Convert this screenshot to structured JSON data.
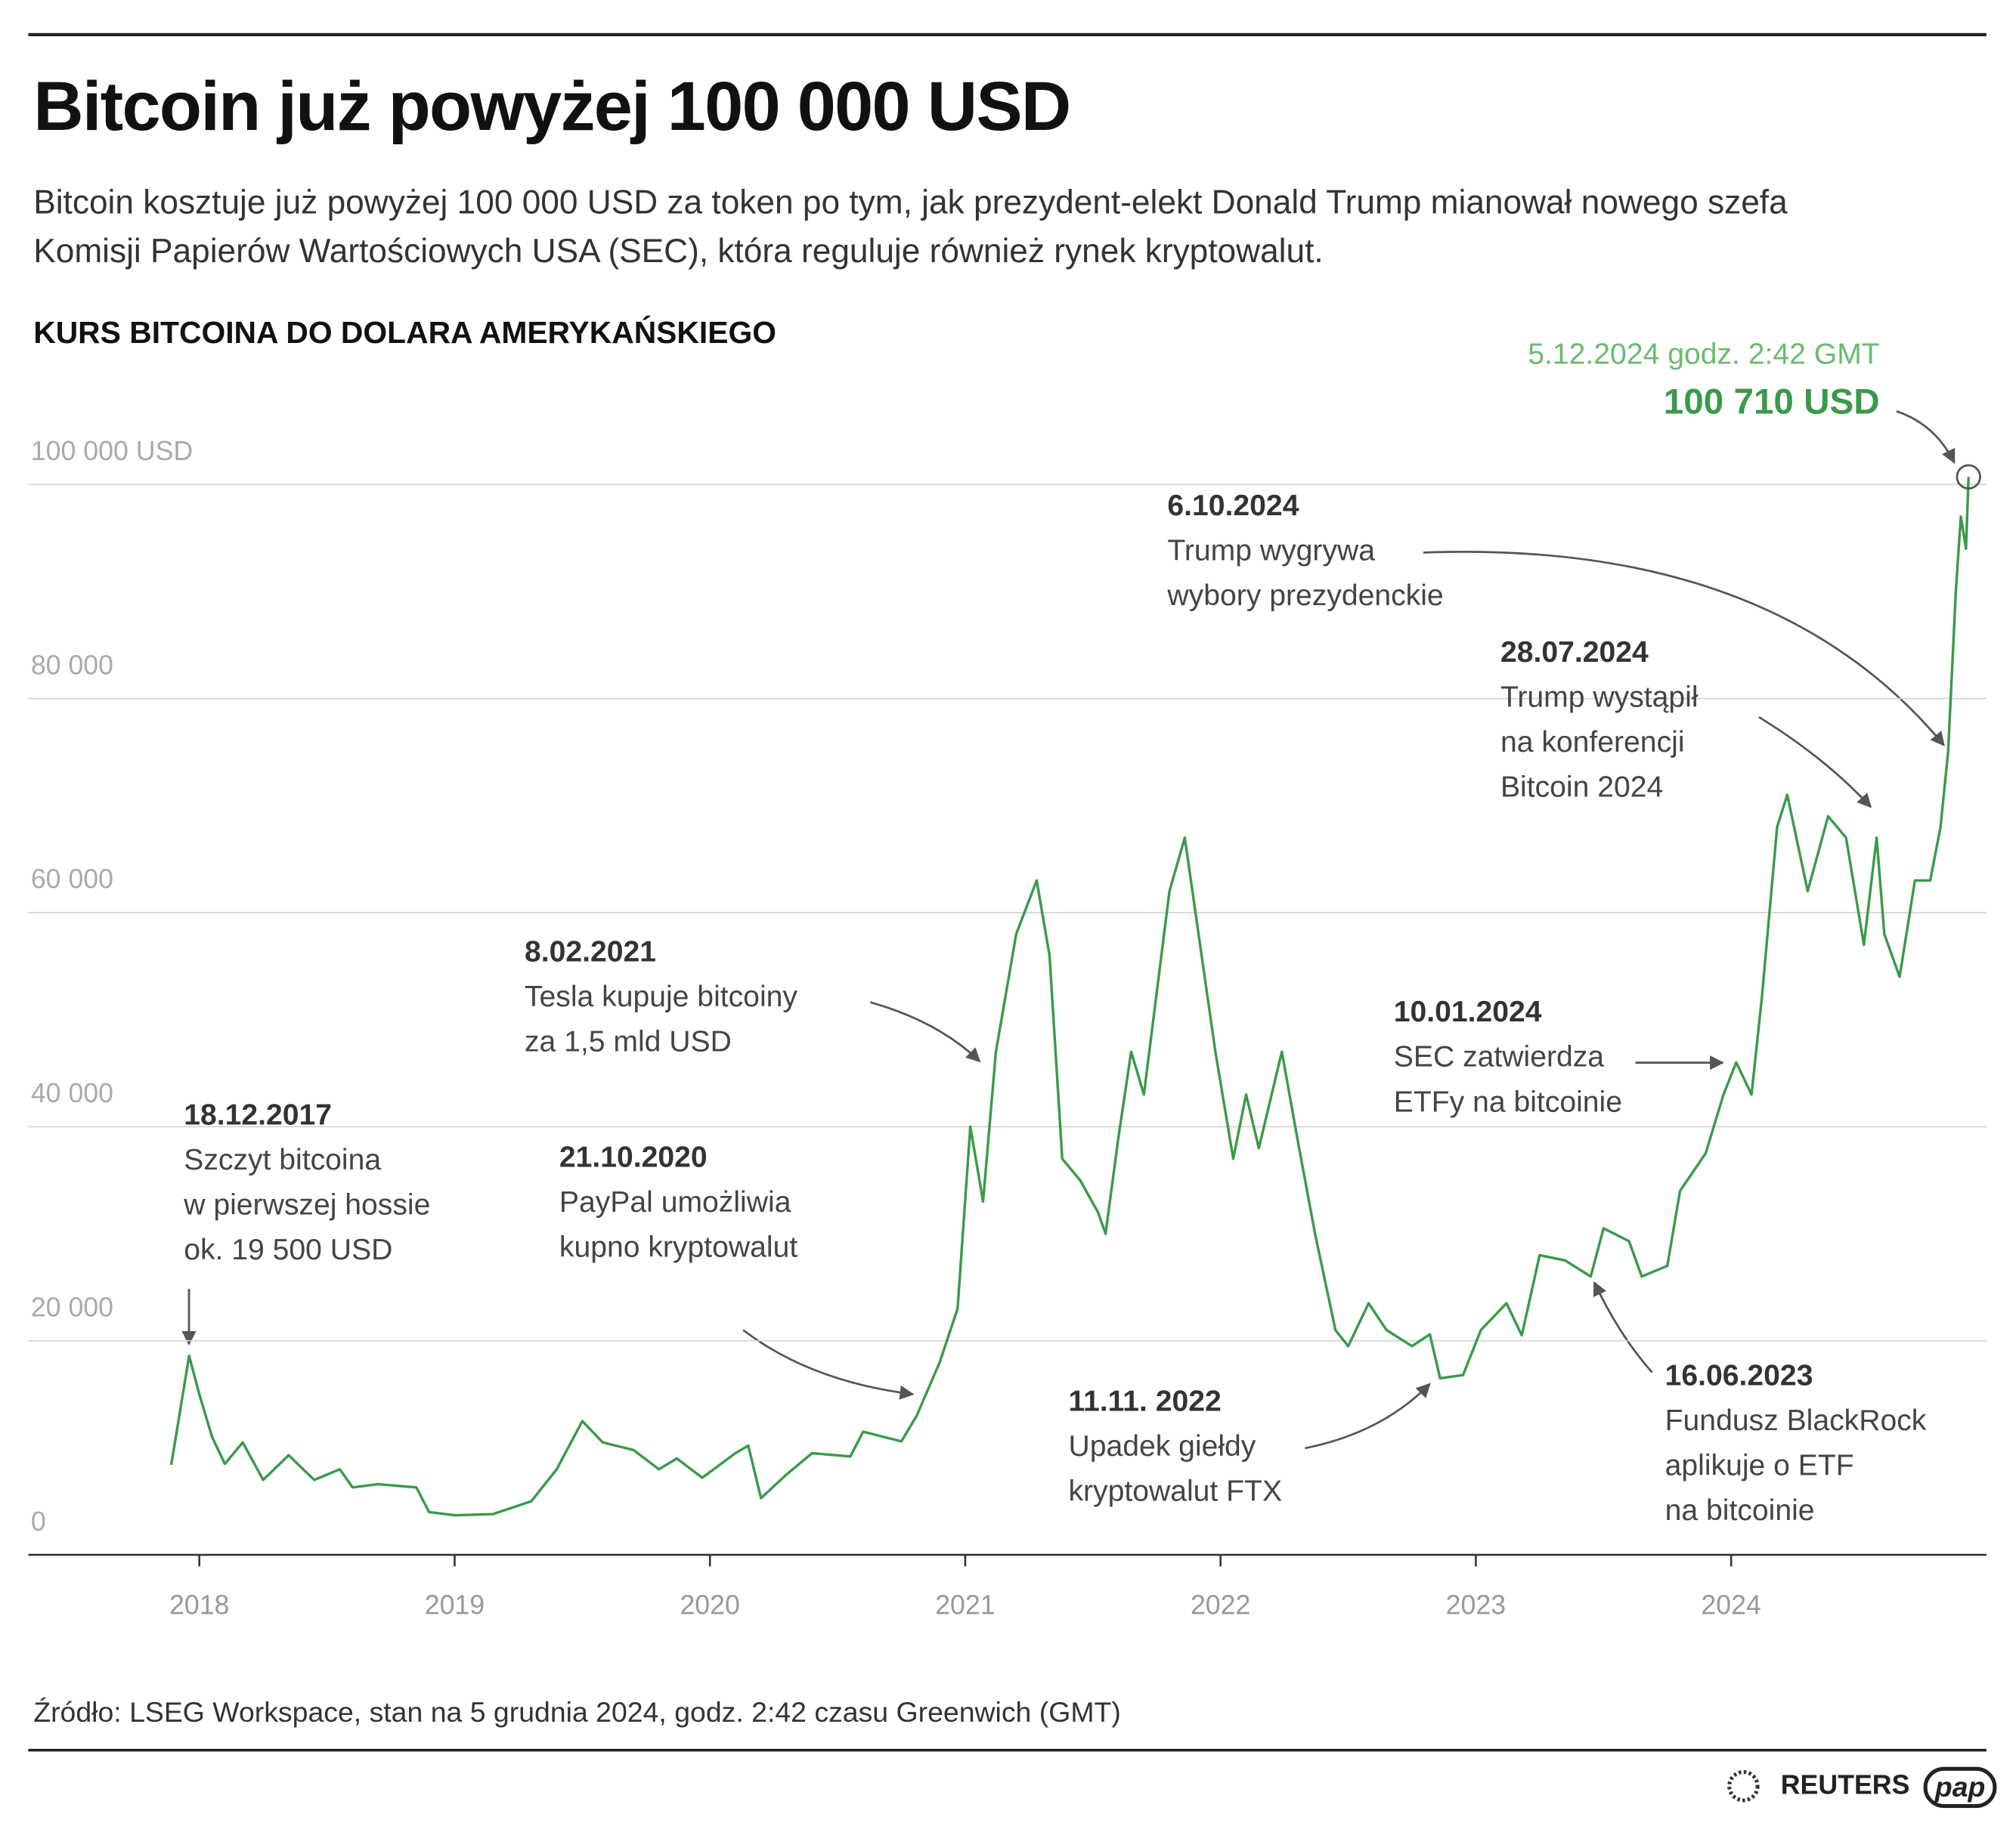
{
  "header": {
    "title": "Bitcoin już powyżej 100 000 USD",
    "subtitle": "Bitcoin kosztuje już powyżej 100 000 USD za token po tym, jak prezydent-elekt Donald Trump mianował nowego szefa Komisji Papierów Wartościowych USA (SEC), która reguluje również rynek kryptowalut."
  },
  "chart_data": {
    "type": "line",
    "title": "KURS BITCOINA DO DOLARA AMERYKAŃSKIEGO",
    "color": "#3a9a4a",
    "x": [
      2017.89,
      2017.96,
      2018.0,
      2018.05,
      2018.1,
      2018.17,
      2018.25,
      2018.35,
      2018.45,
      2018.55,
      2018.6,
      2018.7,
      2018.85,
      2018.9,
      2019.0,
      2019.15,
      2019.3,
      2019.4,
      2019.5,
      2019.58,
      2019.7,
      2019.8,
      2019.87,
      2019.97,
      2020.1,
      2020.15,
      2020.2,
      2020.3,
      2020.4,
      2020.55,
      2020.6,
      2020.75,
      2020.81,
      2020.9,
      2020.97,
      2021.02,
      2021.07,
      2021.12,
      2021.2,
      2021.28,
      2021.33,
      2021.38,
      2021.45,
      2021.52,
      2021.55,
      2021.6,
      2021.65,
      2021.7,
      2021.8,
      2021.86,
      2021.92,
      2021.98,
      2022.05,
      2022.1,
      2022.15,
      2022.24,
      2022.3,
      2022.37,
      2022.45,
      2022.5,
      2022.58,
      2022.65,
      2022.75,
      2022.82,
      2022.86,
      2022.95,
      2023.02,
      2023.12,
      2023.18,
      2023.25,
      2023.35,
      2023.45,
      2023.5,
      2023.6,
      2023.65,
      2023.75,
      2023.8,
      2023.9,
      2023.97,
      2024.02,
      2024.08,
      2024.12,
      2024.18,
      2024.22,
      2024.3,
      2024.38,
      2024.45,
      2024.52,
      2024.57,
      2024.6,
      2024.66,
      2024.72,
      2024.78,
      2024.82,
      2024.85,
      2024.88,
      2024.9,
      2024.92,
      2024.93
    ],
    "values": [
      8400,
      18600,
      15000,
      11000,
      8500,
      10500,
      7000,
      9300,
      7000,
      8000,
      6300,
      6600,
      6300,
      4000,
      3700,
      3800,
      5000,
      8000,
      12500,
      10500,
      9800,
      8000,
      9000,
      7200,
      9500,
      10200,
      5300,
      7500,
      9500,
      9200,
      11500,
      10600,
      13000,
      18000,
      23000,
      40000,
      33000,
      47000,
      58000,
      63000,
      56000,
      37000,
      35000,
      32000,
      30000,
      39000,
      47000,
      43000,
      62000,
      67000,
      57000,
      47000,
      37000,
      43000,
      38000,
      47000,
      39000,
      30000,
      21000,
      19500,
      23500,
      21000,
      19500,
      20600,
      16500,
      16800,
      21000,
      23500,
      20500,
      28000,
      27500,
      26000,
      30500,
      29300,
      26000,
      27000,
      34000,
      37500,
      43000,
      46000,
      43000,
      52000,
      68000,
      71000,
      62000,
      69000,
      67000,
      57000,
      67000,
      58000,
      54000,
      63000,
      63000,
      68000,
      75000,
      90000,
      97000,
      94000,
      100710
    ],
    "xlim": [
      2017.33,
      2025.0
    ],
    "xticks": [
      2018,
      2019,
      2020,
      2021,
      2022,
      2023,
      2024
    ],
    "ylim": [
      0,
      110000
    ],
    "yticks": [
      0,
      {
        "value": 20000,
        "label": "20 000"
      },
      {
        "value": 40000,
        "label": "40 000"
      },
      {
        "value": 60000,
        "label": "60 000"
      },
      {
        "value": 80000,
        "label": "80 000"
      },
      {
        "value": 100000,
        "label": "100 000 USD"
      }
    ],
    "grid": true,
    "peak": {
      "label": "5.12.2024 godz. 2:42 GMT",
      "value": 100710,
      "value_label": "100 710 USD"
    },
    "annotations": [
      {
        "date": "18.12.2017",
        "lines": [
          "Szczyt bitcoina",
          "w pierwszej hossie",
          "ok. 19 500 USD"
        ]
      },
      {
        "date": "21.10.2020",
        "lines": [
          "PayPal umożliwia",
          "kupno kryptowalut"
        ]
      },
      {
        "date": "8.02.2021",
        "lines": [
          "Tesla kupuje bitcoiny",
          "za 1,5 mld USD"
        ]
      },
      {
        "date": "11.11. 2022",
        "lines": [
          "Upadek giełdy",
          "kryptowalut FTX"
        ]
      },
      {
        "date": "16.06.2023",
        "lines": [
          "Fundusz BlackRock",
          "aplikuje o ETF",
          "na bitcoinie"
        ]
      },
      {
        "date": "10.01.2024",
        "lines": [
          "SEC zatwierdza",
          "ETFy na bitcoinie"
        ]
      },
      {
        "date": "28.07.2024",
        "lines": [
          "Trump wystąpił",
          "na konferencji",
          "Bitcoin 2024"
        ]
      },
      {
        "date": "6.10.2024",
        "lines": [
          "Trump wygrywa",
          "wybory prezydenckie"
        ]
      }
    ]
  },
  "footer": {
    "source": "Źródło: LSEG Workspace, stan na 5 grudnia 2024, godz. 2:42 czasu Greenwich (GMT)",
    "logos": [
      "REUTERS",
      "pap"
    ]
  }
}
